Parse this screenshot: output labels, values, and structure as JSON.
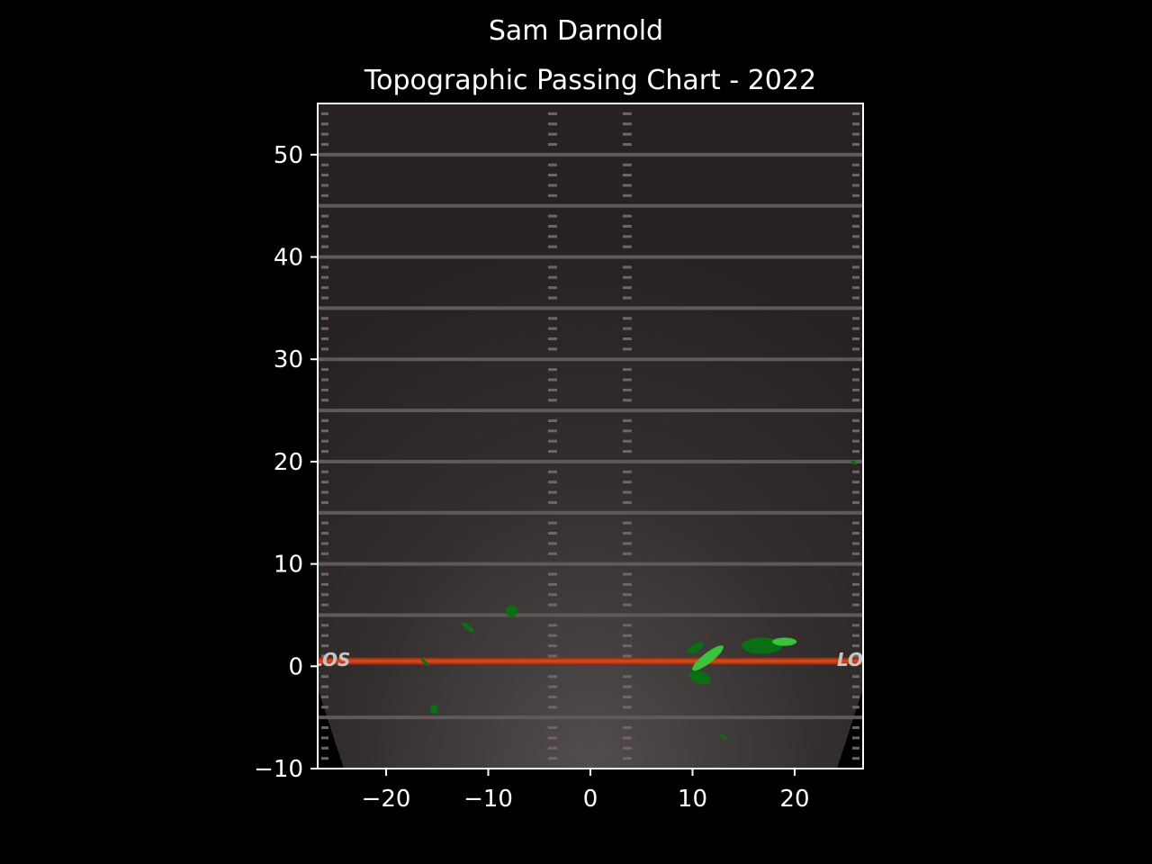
{
  "figure": {
    "suptitle": "Sam Darnold",
    "title": "Topographic Passing Chart - 2022"
  },
  "chart_data": {
    "type": "heatmap",
    "title": "Topographic Passing Chart - 2022",
    "suptitle": "Sam Darnold",
    "xlabel": "",
    "ylabel": "",
    "xlim": [
      -26.7,
      26.7
    ],
    "ylim": [
      -10,
      55
    ],
    "x_ticks": [
      -20,
      -10,
      0,
      10,
      20
    ],
    "y_ticks": [
      -10,
      0,
      10,
      20,
      30,
      40,
      50
    ],
    "x_tick_labels": [
      "−20",
      "−10",
      "0",
      "10",
      "20"
    ],
    "y_tick_labels": [
      "−10",
      "0",
      "10",
      "20",
      "30",
      "40",
      "50"
    ],
    "grid": false,
    "background": "football field (dark turf)",
    "line_of_scrimmage": {
      "y": 0.5,
      "color": "#c8401a"
    },
    "yard_lines": [
      -5,
      5,
      10,
      15,
      20,
      25,
      30,
      35,
      40,
      45,
      50
    ],
    "field_label_left": "LOS",
    "field_label_right": "LOS",
    "colors": {
      "background": "#000000",
      "field": "#2a2626",
      "los": "#c8401a",
      "level_low": "#0a6e12",
      "level_high": "#3bc43b"
    },
    "density_regions": [
      {
        "x": 11.5,
        "y": 0.8,
        "rx": 1.9,
        "ry": 0.5,
        "angle": -38,
        "level": "high"
      },
      {
        "x": 10.3,
        "y": 1.8,
        "rx": 0.9,
        "ry": 0.4,
        "angle": -30,
        "level": "low"
      },
      {
        "x": 16.8,
        "y": 2.0,
        "rx": 2.0,
        "ry": 0.8,
        "angle": 0,
        "level": "low"
      },
      {
        "x": 19.0,
        "y": 2.4,
        "rx": 1.2,
        "ry": 0.4,
        "angle": 0,
        "level": "high"
      },
      {
        "x": 10.7,
        "y": -1.1,
        "rx": 1.1,
        "ry": 0.6,
        "angle": 20,
        "level": "low"
      },
      {
        "x": -7.7,
        "y": 5.4,
        "rx": 0.6,
        "ry": 0.55,
        "angle": 0,
        "level": "low"
      },
      {
        "x": -12.0,
        "y": 3.8,
        "rx": 0.75,
        "ry": 0.25,
        "angle": 40,
        "level": "low"
      },
      {
        "x": -16.2,
        "y": 0.4,
        "rx": 0.55,
        "ry": 0.15,
        "angle": 40,
        "level": "low"
      },
      {
        "x": -15.3,
        "y": -4.2,
        "rx": 0.4,
        "ry": 0.45,
        "angle": 0,
        "level": "low"
      },
      {
        "x": 13.0,
        "y": -6.9,
        "rx": 0.45,
        "ry": 0.15,
        "angle": 35,
        "level": "low"
      },
      {
        "x": 25.8,
        "y": 19.9,
        "rx": 0.3,
        "ry": 0.15,
        "angle": 30,
        "level": "low"
      }
    ]
  }
}
